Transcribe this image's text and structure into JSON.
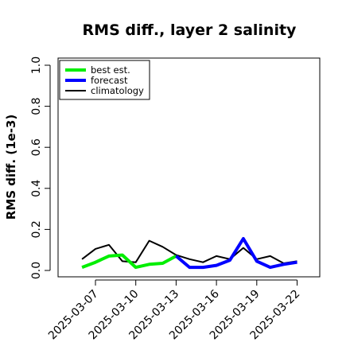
{
  "chart_data": {
    "type": "line",
    "title": "RMS diff., layer 2 salinity",
    "xlabel": "",
    "ylabel": "RMS diff. (1e-3)",
    "ylim": [
      0.0,
      1.0
    ],
    "yticks": [
      "0.0",
      "0.2",
      "0.4",
      "0.6",
      "0.8",
      "1.0"
    ],
    "x_tick_labels": [
      {
        "label": "2025-03-07",
        "day": 7,
        "color": "#000000"
      },
      {
        "label": "2025-03-10",
        "day": 10,
        "color": "#000000"
      },
      {
        "label": "2025-03-13",
        "day": 13,
        "color": "#228b22"
      },
      {
        "label": "2025-03-16",
        "day": 16,
        "color": "#000000"
      },
      {
        "label": "2025-03-19",
        "day": 19,
        "color": "#000000"
      },
      {
        "label": "2025-03-22",
        "day": 22,
        "color": "#000000"
      }
    ],
    "legend_position": "top-left",
    "grid": false,
    "series": [
      {
        "name": "best est.",
        "color": "#00ee00",
        "days": [
          6,
          7,
          8,
          9,
          10,
          11,
          12,
          13
        ],
        "values": [
          0.015,
          0.04,
          0.07,
          0.075,
          0.015,
          0.03,
          0.035,
          0.07
        ]
      },
      {
        "name": "forecast",
        "color": "#0000ff",
        "days": [
          13,
          14,
          15,
          16,
          17,
          18,
          19,
          20,
          21,
          22
        ],
        "values": [
          0.07,
          0.015,
          0.015,
          0.025,
          0.05,
          0.155,
          0.045,
          0.015,
          0.03,
          0.04
        ]
      },
      {
        "name": "climatology",
        "color": "#000000",
        "days": [
          6,
          7,
          8,
          9,
          10,
          11,
          12,
          13,
          14,
          15,
          16,
          17,
          18,
          19,
          20,
          21,
          22
        ],
        "values": [
          0.055,
          0.105,
          0.125,
          0.045,
          0.04,
          0.145,
          0.115,
          0.075,
          0.055,
          0.04,
          0.07,
          0.055,
          0.11,
          0.055,
          0.07,
          0.035,
          0.045
        ]
      }
    ]
  }
}
